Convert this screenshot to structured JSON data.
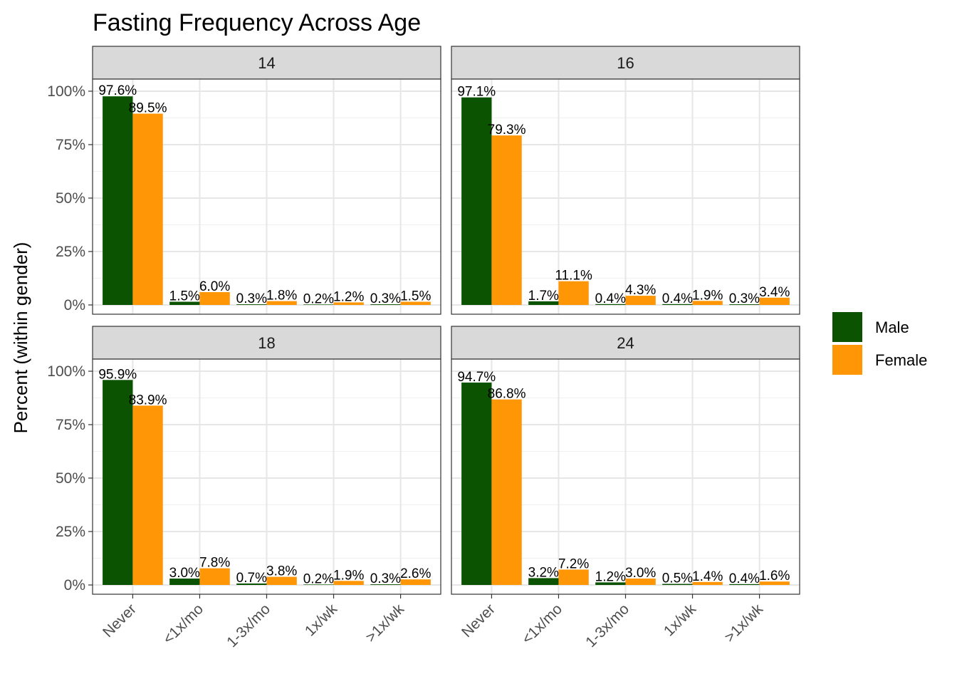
{
  "chart_data": {
    "type": "bar",
    "title": "Fasting Frequency Across Age",
    "xlabel": "",
    "ylabel": "Percent (within gender)",
    "ylim": [
      0,
      1.05
    ],
    "y_ticks": [
      0,
      0.25,
      0.5,
      0.75,
      1.0
    ],
    "y_tick_labels": [
      "0%",
      "25%",
      "50%",
      "75%",
      "100%"
    ],
    "categories": [
      "Never",
      "<1x/mo",
      "1-3x/mo",
      "1x/wk",
      ">1x/wk"
    ],
    "grid": true,
    "legend_position": "right",
    "series_colors": {
      "Male": "#0b5300",
      "Female": "#ff9606"
    },
    "panels": [
      {
        "facet": "14",
        "series": [
          {
            "name": "Male",
            "values": [
              0.976,
              0.015,
              0.003,
              0.002,
              0.003
            ],
            "labels": [
              "97.6%",
              "1.5%",
              "0.3%",
              "0.2%",
              "0.3%"
            ]
          },
          {
            "name": "Female",
            "values": [
              0.895,
              0.06,
              0.018,
              0.012,
              0.015
            ],
            "labels": [
              "89.5%",
              "6.0%",
              "1.8%",
              "1.2%",
              "1.5%"
            ]
          }
        ]
      },
      {
        "facet": "16",
        "series": [
          {
            "name": "Male",
            "values": [
              0.971,
              0.017,
              0.004,
              0.004,
              0.003
            ],
            "labels": [
              "97.1%",
              "1.7%",
              "0.4%",
              "0.4%",
              "0.3%"
            ]
          },
          {
            "name": "Female",
            "values": [
              0.793,
              0.111,
              0.043,
              0.019,
              0.034
            ],
            "labels": [
              "79.3%",
              "11.1%",
              "4.3%",
              "1.9%",
              "3.4%"
            ]
          }
        ]
      },
      {
        "facet": "18",
        "series": [
          {
            "name": "Male",
            "values": [
              0.959,
              0.03,
              0.007,
              0.002,
              0.003
            ],
            "labels": [
              "95.9%",
              "3.0%",
              "0.7%",
              "0.2%",
              "0.3%"
            ]
          },
          {
            "name": "Female",
            "values": [
              0.839,
              0.078,
              0.038,
              0.019,
              0.026
            ],
            "labels": [
              "83.9%",
              "7.8%",
              "3.8%",
              "1.9%",
              "2.6%"
            ]
          }
        ]
      },
      {
        "facet": "24",
        "series": [
          {
            "name": "Male",
            "values": [
              0.947,
              0.032,
              0.012,
              0.005,
              0.004
            ],
            "labels": [
              "94.7%",
              "3.2%",
              "1.2%",
              "0.5%",
              "0.4%"
            ]
          },
          {
            "name": "Female",
            "values": [
              0.868,
              0.072,
              0.03,
              0.014,
              0.016
            ],
            "labels": [
              "86.8%",
              "7.2%",
              "3.0%",
              "1.4%",
              "1.6%"
            ]
          }
        ]
      }
    ],
    "legend": [
      {
        "name": "Male",
        "color": "#0b5300"
      },
      {
        "name": "Female",
        "color": "#ff9606"
      }
    ]
  }
}
